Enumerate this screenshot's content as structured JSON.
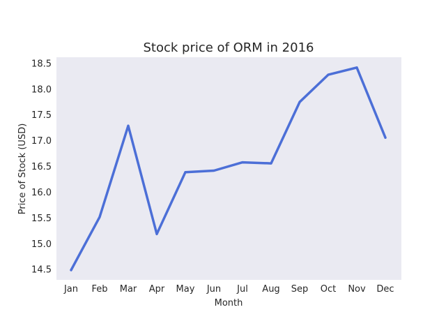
{
  "chart_data": {
    "type": "line",
    "title": "Stock price of ORM in 2016",
    "xlabel": "Month",
    "ylabel": "Price of Stock (USD)",
    "categories": [
      "Jan",
      "Feb",
      "Mar",
      "Apr",
      "May",
      "Jun",
      "Jul",
      "Aug",
      "Sep",
      "Oct",
      "Nov",
      "Dec"
    ],
    "series": [
      {
        "values": [
          14.49,
          15.52,
          17.29,
          15.19,
          16.39,
          16.42,
          16.58,
          16.56,
          17.75,
          18.28,
          18.42,
          17.06
        ]
      }
    ],
    "ylim": [
      14.3,
      18.62
    ],
    "yticks": [
      "14.5",
      "15.0",
      "15.5",
      "16.0",
      "16.5",
      "17.0",
      "17.5",
      "18.0",
      "18.5"
    ],
    "grid": false,
    "line_color": "#4c6fd7",
    "plot_background": "#eaeaf2"
  }
}
